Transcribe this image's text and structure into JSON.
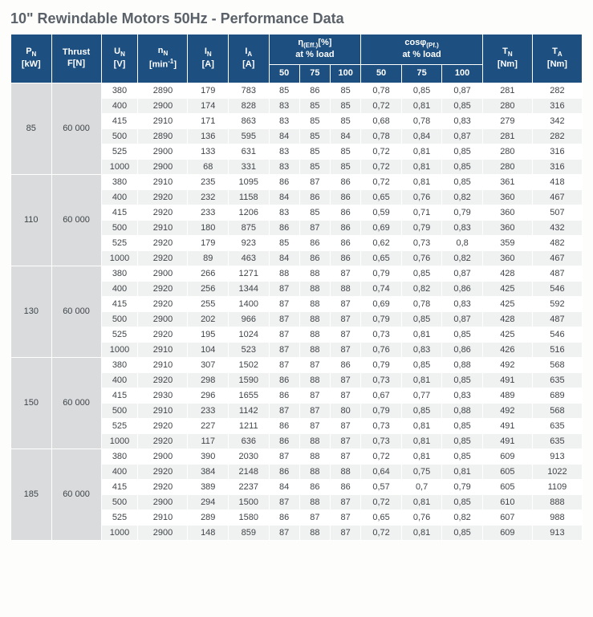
{
  "title": "10\" Rewindable Motors 50Hz - Performance Data",
  "headers": {
    "pn": "P<span class='sub'>N</span><br>[kW]",
    "thr": "Thrust<br>F[N]",
    "un": "U<span class='sub'>N</span><br>[V]",
    "nn": "n<span class='sub'>N</span><br>[min<span class='sup'>-1</span>]",
    "in": "I<span class='sub'>N</span><br>[A]",
    "ia": "I<span class='sub'>A</span><br>[A]",
    "eff": "η<span class='sub'>(Eff.)</span>[%]<br>at % load",
    "cos": "cosφ<span class='sub'>(Pf.)</span><br>at % load",
    "tn": "T<span class='sub'>N</span><br>[Nm]",
    "ta": "T<span class='sub'>A</span><br>[Nm]",
    "p50": "50",
    "p75": "75",
    "p100": "100"
  },
  "groups": [
    {
      "pn": "85",
      "thrust": "60 000",
      "rows": [
        [
          "380",
          "2890",
          "179",
          "783",
          "85",
          "86",
          "85",
          "0,78",
          "0,85",
          "0,87",
          "281",
          "282"
        ],
        [
          "400",
          "2900",
          "174",
          "828",
          "83",
          "85",
          "85",
          "0,72",
          "0,81",
          "0,85",
          "280",
          "316"
        ],
        [
          "415",
          "2910",
          "171",
          "863",
          "83",
          "85",
          "85",
          "0,68",
          "0,78",
          "0,83",
          "279",
          "342"
        ],
        [
          "500",
          "2890",
          "136",
          "595",
          "84",
          "85",
          "84",
          "0,78",
          "0,84",
          "0,87",
          "281",
          "282"
        ],
        [
          "525",
          "2900",
          "133",
          "631",
          "83",
          "85",
          "85",
          "0,72",
          "0,81",
          "0,85",
          "280",
          "316"
        ],
        [
          "1000",
          "2900",
          "68",
          "331",
          "83",
          "85",
          "85",
          "0,72",
          "0,81",
          "0,85",
          "280",
          "316"
        ]
      ]
    },
    {
      "pn": "110",
      "thrust": "60 000",
      "rows": [
        [
          "380",
          "2910",
          "235",
          "1095",
          "86",
          "87",
          "86",
          "0,72",
          "0,81",
          "0,85",
          "361",
          "418"
        ],
        [
          "400",
          "2920",
          "232",
          "1158",
          "84",
          "86",
          "86",
          "0,65",
          "0,76",
          "0,82",
          "360",
          "467"
        ],
        [
          "415",
          "2920",
          "233",
          "1206",
          "83",
          "85",
          "86",
          "0,59",
          "0,71",
          "0,79",
          "360",
          "507"
        ],
        [
          "500",
          "2910",
          "180",
          "875",
          "86",
          "87",
          "86",
          "0,69",
          "0,79",
          "0,83",
          "360",
          "432"
        ],
        [
          "525",
          "2920",
          "179",
          "923",
          "85",
          "86",
          "86",
          "0,62",
          "0,73",
          "0,8",
          "359",
          "482"
        ],
        [
          "1000",
          "2920",
          "89",
          "463",
          "84",
          "86",
          "86",
          "0,65",
          "0,76",
          "0,82",
          "360",
          "467"
        ]
      ]
    },
    {
      "pn": "130",
      "thrust": "60 000",
      "rows": [
        [
          "380",
          "2900",
          "266",
          "1271",
          "88",
          "88",
          "87",
          "0,79",
          "0,85",
          "0,87",
          "428",
          "487"
        ],
        [
          "400",
          "2920",
          "256",
          "1344",
          "87",
          "88",
          "88",
          "0,74",
          "0,82",
          "0,86",
          "425",
          "546"
        ],
        [
          "415",
          "2920",
          "255",
          "1400",
          "87",
          "88",
          "87",
          "0,69",
          "0,78",
          "0,83",
          "425",
          "592"
        ],
        [
          "500",
          "2900",
          "202",
          "966",
          "87",
          "88",
          "87",
          "0,79",
          "0,85",
          "0,87",
          "428",
          "487"
        ],
        [
          "525",
          "2920",
          "195",
          "1024",
          "87",
          "88",
          "87",
          "0,73",
          "0,81",
          "0,85",
          "425",
          "546"
        ],
        [
          "1000",
          "2910",
          "104",
          "523",
          "87",
          "88",
          "87",
          "0,76",
          "0,83",
          "0,86",
          "426",
          "516"
        ]
      ]
    },
    {
      "pn": "150",
      "thrust": "60 000",
      "rows": [
        [
          "380",
          "2910",
          "307",
          "1502",
          "87",
          "87",
          "86",
          "0,79",
          "0,85",
          "0,88",
          "492",
          "568"
        ],
        [
          "400",
          "2920",
          "298",
          "1590",
          "86",
          "88",
          "87",
          "0,73",
          "0,81",
          "0,85",
          "491",
          "635"
        ],
        [
          "415",
          "2930",
          "296",
          "1655",
          "86",
          "87",
          "87",
          "0,67",
          "0,77",
          "0,83",
          "489",
          "689"
        ],
        [
          "500",
          "2910",
          "233",
          "1142",
          "87",
          "87",
          "80",
          "0,79",
          "0,85",
          "0,88",
          "492",
          "568"
        ],
        [
          "525",
          "2920",
          "227",
          "1211",
          "86",
          "87",
          "87",
          "0,73",
          "0,81",
          "0,85",
          "491",
          "635"
        ],
        [
          "1000",
          "2920",
          "117",
          "636",
          "86",
          "88",
          "87",
          "0,73",
          "0,81",
          "0,85",
          "491",
          "635"
        ]
      ]
    },
    {
      "pn": "185",
      "thrust": "60 000",
      "rows": [
        [
          "380",
          "2900",
          "390",
          "2030",
          "87",
          "88",
          "87",
          "0,72",
          "0,81",
          "0,85",
          "609",
          "913"
        ],
        [
          "400",
          "2920",
          "384",
          "2148",
          "86",
          "88",
          "88",
          "0,64",
          "0,75",
          "0,81",
          "605",
          "1022"
        ],
        [
          "415",
          "2920",
          "389",
          "2237",
          "84",
          "86",
          "86",
          "0,57",
          "0,7",
          "0,79",
          "605",
          "1109"
        ],
        [
          "500",
          "2900",
          "294",
          "1500",
          "87",
          "88",
          "87",
          "0,72",
          "0,81",
          "0,85",
          "610",
          "888"
        ],
        [
          "525",
          "2910",
          "289",
          "1580",
          "86",
          "87",
          "87",
          "0,65",
          "0,76",
          "0,82",
          "607",
          "988"
        ],
        [
          "1000",
          "2900",
          "148",
          "859",
          "87",
          "88",
          "87",
          "0,72",
          "0,81",
          "0,85",
          "609",
          "913"
        ]
      ]
    }
  ]
}
